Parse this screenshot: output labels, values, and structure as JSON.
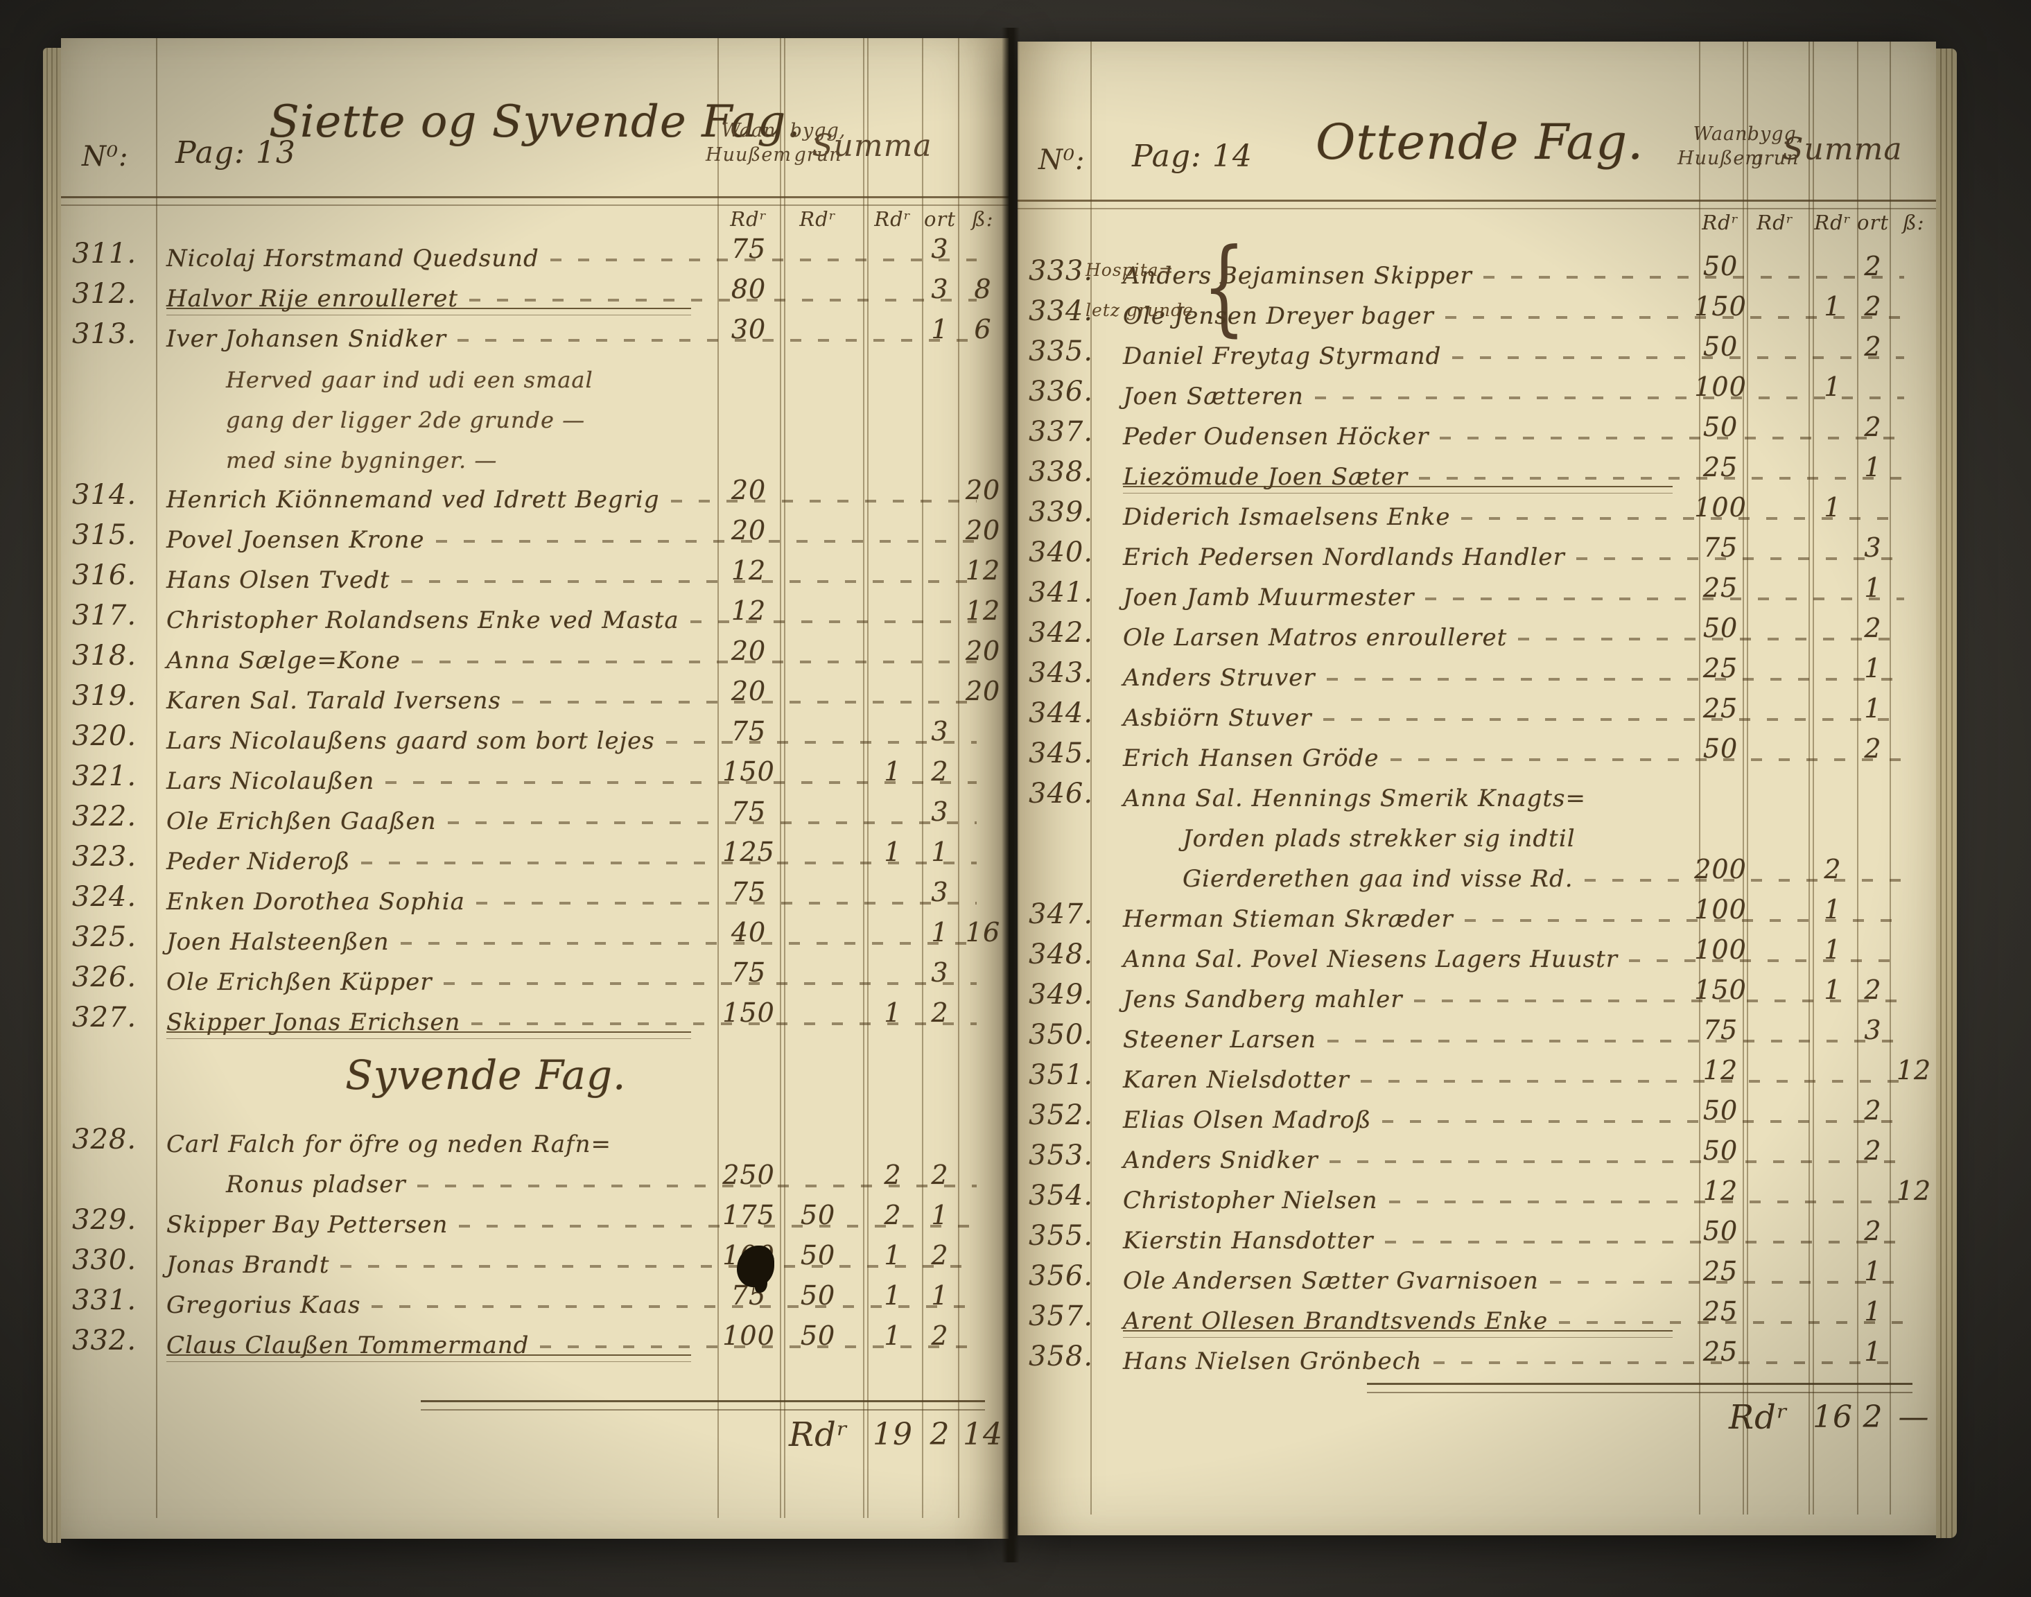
{
  "document_kind": "handwritten ledger scan, open book, two pages",
  "ink_color": "#4a381f",
  "paper_color": "#eae0bd",
  "background_color": "#39362e",
  "pages": [
    {
      "id": "left",
      "header": {
        "no_label": "N⁰:",
        "pag_label": "Pag: 13",
        "title": "Siette og Syvende Fag."
      },
      "columns": {
        "col1_line1": "Waan",
        "col1_line2": "Huußem",
        "col2_line1": "bygg,",
        "col2_line2": "grun",
        "col3": "Summa",
        "unit_rdr": "Rdʳ",
        "unit_ort": "ort",
        "unit_sk": "ß:"
      },
      "rows": [
        {
          "no": "311.",
          "lines": [
            "Nicolaj Horstmand Quedsund"
          ],
          "v1": "75",
          "so": "3"
        },
        {
          "no": "312.",
          "lines": [
            "Halvor Rije enroulleret"
          ],
          "v1": "80",
          "so": "3",
          "sk": "8",
          "rule_below": true
        },
        {
          "no": "313.",
          "lines": [
            "Iver Johansen Snidker"
          ],
          "v1": "30",
          "so": "1",
          "sk": "6"
        },
        {
          "no": "",
          "note": true,
          "lines": [
            "Herved gaar ind udi een smaal",
            "gang der ligger 2de grunde —",
            "med sine bygninger. —"
          ]
        },
        {
          "no": "314.",
          "lines": [
            "Henrich Kiönnemand ved Idrett Begrig"
          ],
          "v1": "20",
          "sk": "20"
        },
        {
          "no": "315.",
          "lines": [
            "Povel Joensen Krone"
          ],
          "v1": "20",
          "sk": "20"
        },
        {
          "no": "316.",
          "lines": [
            "Hans Olsen Tvedt"
          ],
          "v1": "12",
          "sk": "12"
        },
        {
          "no": "317.",
          "lines": [
            "Christopher Rolandsens Enke ved Masta"
          ],
          "v1": "12",
          "sk": "12"
        },
        {
          "no": "318.",
          "lines": [
            "Anna Sælge=Kone"
          ],
          "v1": "20",
          "sk": "20"
        },
        {
          "no": "319.",
          "lines": [
            "Karen Sal. Tarald Iversens"
          ],
          "v1": "20",
          "sk": "20"
        },
        {
          "no": "320.",
          "lines": [
            "Lars Nicolaußens gaard som bort lejes"
          ],
          "v1": "75",
          "so": "3"
        },
        {
          "no": "321.",
          "lines": [
            "Lars Nicolaußen"
          ],
          "v1": "150",
          "sr": "1",
          "so": "2"
        },
        {
          "no": "322.",
          "lines": [
            "Ole Erichßen Gaaßen"
          ],
          "v1": "75",
          "so": "3"
        },
        {
          "no": "323.",
          "lines": [
            "Peder Nideroß"
          ],
          "v1": "125",
          "sr": "1",
          "so": "1"
        },
        {
          "no": "324.",
          "lines": [
            "Enken Dorothea Sophia"
          ],
          "v1": "75",
          "so": "3"
        },
        {
          "no": "325.",
          "lines": [
            "Joen Halsteenßen"
          ],
          "v1": "40",
          "so": "1",
          "sk": "16"
        },
        {
          "no": "326.",
          "lines": [
            "Ole Erichßen Küpper"
          ],
          "v1": "75",
          "so": "3"
        },
        {
          "no": "327.",
          "lines": [
            "Skipper Jonas Erichsen"
          ],
          "v1": "150",
          "sr": "1",
          "so": "2",
          "rule_below": true
        },
        {
          "heading": "Syvende Fag."
        },
        {
          "no": "328.",
          "lines": [
            "Carl Falch for öfre og neden Rafn=",
            "Ronus pladser"
          ],
          "v1": "250",
          "sr": "2",
          "so": "2"
        },
        {
          "no": "329.",
          "lines": [
            "Skipper Bay Pettersen"
          ],
          "v1": "175",
          "v2": "50",
          "sr": "2",
          "so": "1"
        },
        {
          "no": "330.",
          "lines": [
            "Jonas Brandt"
          ],
          "v1": "100",
          "v2": "50",
          "sr": "1",
          "so": "2"
        },
        {
          "no": "331.",
          "lines": [
            "Gregorius Kaas"
          ],
          "v1": "75",
          "v2": "50",
          "sr": "1",
          "so": "1"
        },
        {
          "no": "332.",
          "lines": [
            "Claus Claußen Tommermand"
          ],
          "v1": "100",
          "v2": "50",
          "sr": "1",
          "so": "2",
          "rule_below": true
        }
      ],
      "total": {
        "label": "Rdʳ",
        "rd": "19",
        "ort": "2",
        "sk": "14"
      }
    },
    {
      "id": "right",
      "header": {
        "no_label": "N⁰:",
        "pag_label": "Pag: 14",
        "title": "Ottende Fag."
      },
      "columns": {
        "col1_line1": "Waan",
        "col1_line2": "Huußem",
        "col2_line1": "bygg,",
        "col2_line2": "grun",
        "col3": "Summa",
        "unit_rdr": "Rdʳ",
        "unit_ort": "ort",
        "unit_sk": "ß:"
      },
      "rows": [
        {
          "no": "333.",
          "margin": "Hospita=",
          "brace": true,
          "lines": [
            "Anders Bejaminsen Skipper"
          ],
          "v1": "50",
          "so": "2"
        },
        {
          "no": "334.",
          "margin": "letz grunde",
          "lines": [
            "Ole Jensen Dreyer bager"
          ],
          "v1": "150",
          "sr": "1",
          "so": "2"
        },
        {
          "no": "335.",
          "lines": [
            "Daniel Freytag Styrmand"
          ],
          "v1": "50",
          "so": "2"
        },
        {
          "no": "336.",
          "lines": [
            "Joen Sætteren"
          ],
          "v1": "100",
          "sr": "1"
        },
        {
          "no": "337.",
          "lines": [
            "Peder Oudensen Höcker"
          ],
          "v1": "50",
          "so": "2"
        },
        {
          "no": "338.",
          "lines": [
            "Liezömude Joen Sæter"
          ],
          "v1": "25",
          "so": "1",
          "rule_below": true
        },
        {
          "no": "339.",
          "lines": [
            "Diderich Ismaelsens Enke"
          ],
          "v1": "100",
          "sr": "1"
        },
        {
          "no": "340.",
          "lines": [
            "Erich Pedersen Nordlands Handler"
          ],
          "v1": "75",
          "so": "3"
        },
        {
          "no": "341.",
          "lines": [
            "Joen Jamb Muurmester"
          ],
          "v1": "25",
          "so": "1"
        },
        {
          "no": "342.",
          "lines": [
            "Ole Larsen Matros enroulleret"
          ],
          "v1": "50",
          "so": "2"
        },
        {
          "no": "343.",
          "lines": [
            "Anders Struver"
          ],
          "v1": "25",
          "so": "1"
        },
        {
          "no": "344.",
          "lines": [
            "Asbiörn Stuver"
          ],
          "v1": "25",
          "so": "1"
        },
        {
          "no": "345.",
          "lines": [
            "Erich Hansen Gröde"
          ],
          "v1": "50",
          "so": "2"
        },
        {
          "no": "346.",
          "lines": [
            "Anna Sal. Hennings Smerik Knagts=",
            "Jorden plads strekker sig indtil",
            "Gierderethen gaa ind visse Rd."
          ],
          "v1": "200",
          "sr": "2"
        },
        {
          "no": "347.",
          "lines": [
            "Herman Stieman Skræder"
          ],
          "v1": "100",
          "sr": "1"
        },
        {
          "no": "348.",
          "lines": [
            "Anna Sal. Povel Niesens Lagers Huustr"
          ],
          "v1": "100",
          "sr": "1"
        },
        {
          "no": "349.",
          "lines": [
            "Jens Sandberg mahler"
          ],
          "v1": "150",
          "sr": "1",
          "so": "2"
        },
        {
          "no": "350.",
          "lines": [
            "Steener Larsen"
          ],
          "v1": "75",
          "so": "3"
        },
        {
          "no": "351.",
          "lines": [
            "Karen Nielsdotter"
          ],
          "v1": "12",
          "sk": "12"
        },
        {
          "no": "352.",
          "lines": [
            "Elias Olsen Madroß"
          ],
          "v1": "50",
          "so": "2"
        },
        {
          "no": "353.",
          "lines": [
            "Anders Snidker"
          ],
          "v1": "50",
          "so": "2"
        },
        {
          "no": "354.",
          "lines": [
            "Christopher Nielsen"
          ],
          "v1": "12",
          "sk": "12"
        },
        {
          "no": "355.",
          "lines": [
            "Kierstin Hansdotter"
          ],
          "v1": "50",
          "so": "2"
        },
        {
          "no": "356.",
          "lines": [
            "Ole Andersen Sætter Gvarnisoen"
          ],
          "v1": "25",
          "so": "1"
        },
        {
          "no": "357.",
          "lines": [
            "Arent Ollesen Brandtsvends Enke"
          ],
          "v1": "25",
          "so": "1",
          "rule_below": true
        },
        {
          "no": "358.",
          "lines": [
            "Hans Nielsen Grönbech"
          ],
          "v1": "25",
          "so": "1"
        }
      ],
      "total": {
        "label": "Rdʳ",
        "rd": "16",
        "ort": "2",
        "sk": "—"
      }
    }
  ]
}
